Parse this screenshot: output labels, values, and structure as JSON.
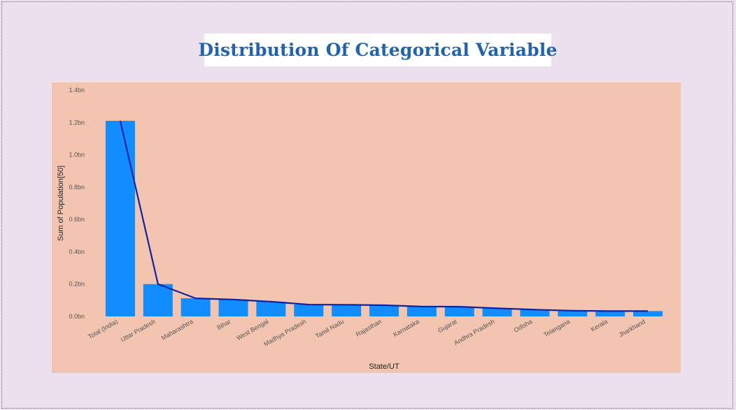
{
  "title": "Distribution Of Categorical Variable",
  "colors": {
    "page_background": "#ede0ee",
    "plot_background": "#f3c5b0",
    "bar": "#118dff",
    "line": "#12239e",
    "title": "#1f63b2"
  },
  "chart_data": {
    "type": "bar",
    "overlay": "line",
    "title": "Distribution Of Categorical Variable",
    "xlabel": "State/UT",
    "ylabel": "Sum of Population[50]",
    "ylim": [
      0,
      1.4
    ],
    "y_unit": "bn",
    "y_ticks": [
      "0.0bn",
      "0.2bn",
      "0.4bn",
      "0.6bn",
      "0.8bn",
      "1.0bn",
      "1.2bn",
      "1.4bn"
    ],
    "grid": false,
    "categories": [
      "Total (India)",
      "Uttar Pradesh",
      "Maharashtra",
      "Bihar",
      "West Bengal",
      "Madhya Pradesh",
      "Tamil Nadu",
      "Rajasthan",
      "Karnataka",
      "Gujarat",
      "Andhra Pradesh",
      "Odisha",
      "Telangana",
      "Kerala",
      "Jharkhand"
    ],
    "values": [
      1.21,
      0.2,
      0.112,
      0.104,
      0.091,
      0.073,
      0.072,
      0.069,
      0.061,
      0.06,
      0.05,
      0.042,
      0.035,
      0.033,
      0.033
    ]
  }
}
